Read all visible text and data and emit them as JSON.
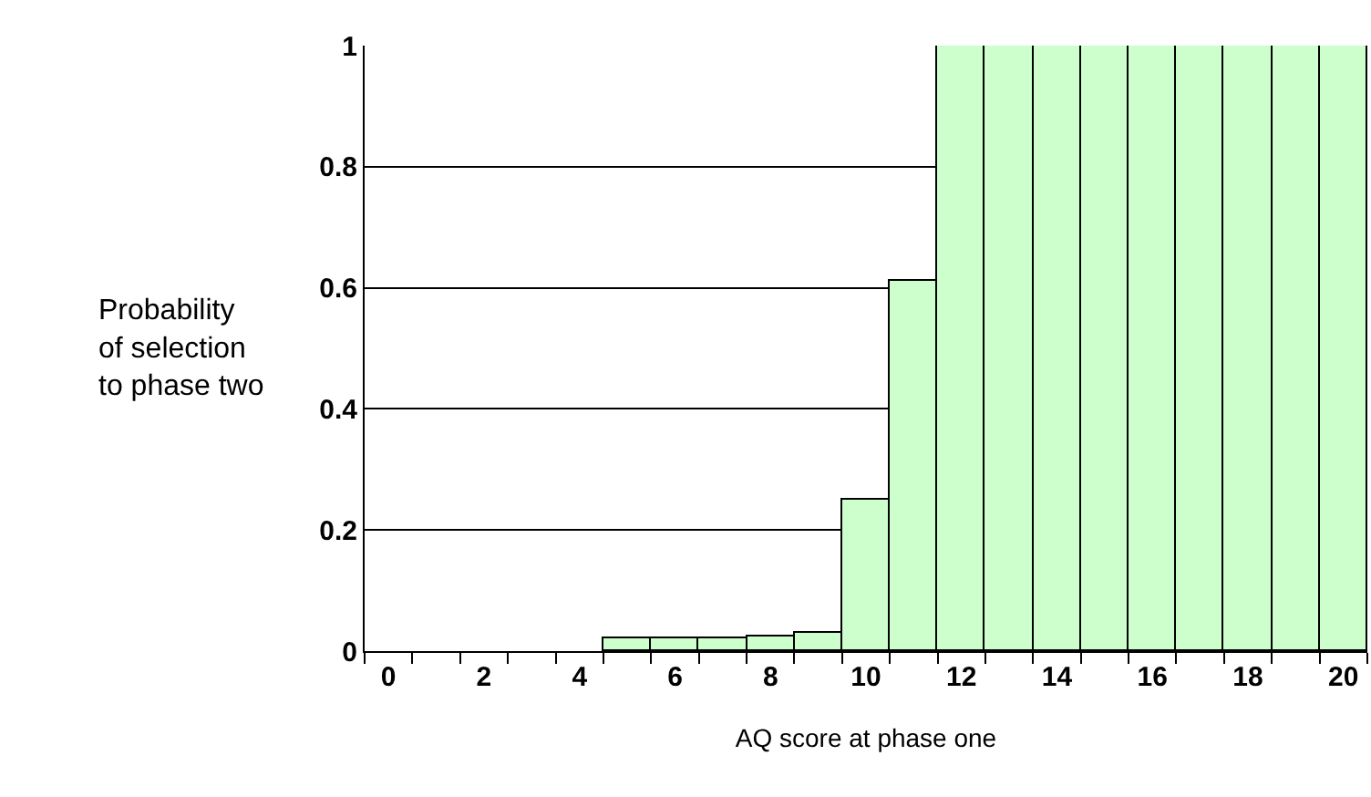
{
  "chart_data": {
    "type": "bar",
    "xlabel": "AQ score at phase one",
    "ylabel": "Probability of selection to phase two",
    "categories": [
      "0",
      null,
      "2",
      null,
      "4",
      null,
      "6",
      null,
      "8",
      null,
      "10",
      null,
      "12",
      null,
      "14",
      null,
      "16",
      null,
      "18",
      null,
      "20"
    ],
    "values": [
      0,
      0,
      0,
      0,
      0,
      0.02,
      0.02,
      0.02,
      0.025,
      0.03,
      0.25,
      0.61,
      1,
      1,
      1,
      1,
      1,
      1,
      1,
      1,
      1
    ],
    "color": "#ccffcc",
    "ylim": [
      0,
      1
    ],
    "yticks": [
      0,
      0.2,
      0.4,
      0.6,
      0.8,
      1
    ],
    "grid": "y"
  }
}
